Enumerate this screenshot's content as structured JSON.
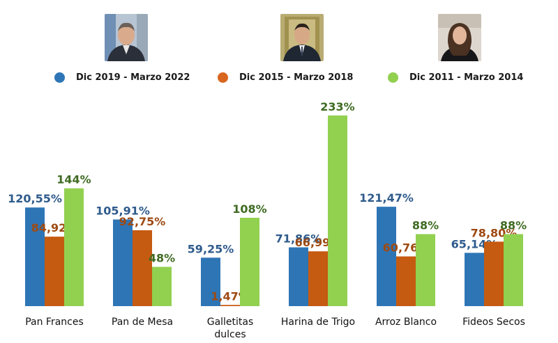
{
  "chart_data": {
    "type": "bar",
    "categories": [
      "Pan Frances",
      "Pan de Mesa",
      "Galletitas dulces",
      "Harina de Trigo",
      "Arroz Blanco",
      "Fideos Secos"
    ],
    "category_lines": [
      [
        "Pan Frances"
      ],
      [
        "Pan de Mesa"
      ],
      [
        "Galletitas",
        "dulces"
      ],
      [
        "Harina de Trigo"
      ],
      [
        "Arroz Blanco"
      ],
      [
        "Fideos Secos"
      ]
    ],
    "series": [
      {
        "name": "Dic 2019 - Marzo 2022",
        "color": "#2E75B6",
        "label_color": "#2F5B8C",
        "values": [
          120.55,
          105.91,
          59.25,
          71.86,
          121.47,
          65.14
        ],
        "labels": [
          "120,55%",
          "105,91%",
          "59,25%",
          "71,86%",
          "121,47%",
          "65,14%"
        ]
      },
      {
        "name": "Dic 2015 - Marzo 2018",
        "color": "#C55A11",
        "label_color": "#9E4A12",
        "values": [
          84.92,
          92.75,
          1.47,
          66.99,
          60.76,
          78.8
        ],
        "labels": [
          "84,92%",
          "92,75%",
          "1,47%",
          "66,99%",
          "60,76%",
          "78,80%"
        ]
      },
      {
        "name": "Dic 2011 - Marzo 2014",
        "color": "#92D050",
        "label_color": "#3F6B22",
        "values": [
          144,
          48,
          108,
          233,
          88,
          88
        ],
        "labels": [
          "144%",
          "48%",
          "108%",
          "233%",
          "88%",
          "88%"
        ]
      }
    ],
    "title": "",
    "xlabel": "",
    "ylabel": "",
    "ylim": [
      0,
      233
    ],
    "grid": false,
    "legend": "top"
  },
  "legend": {
    "items": [
      {
        "label": "Dic 2019 - Marzo 2022",
        "color": "#2E75B6"
      },
      {
        "label": "Dic 2015 - Marzo 2018",
        "color": "#D9661F"
      },
      {
        "label": "Dic 2011 - Marzo 2014",
        "color": "#92D050"
      }
    ]
  }
}
